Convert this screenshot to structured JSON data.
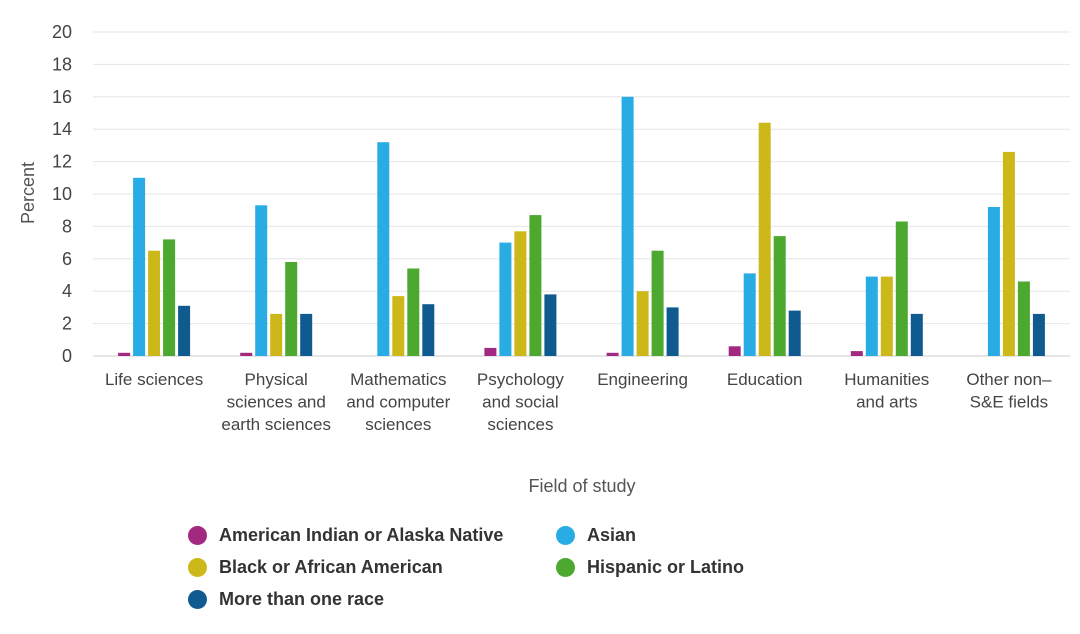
{
  "chart_data": {
    "type": "bar",
    "title": "",
    "xlabel": "Field of study",
    "ylabel": "Percent",
    "ylim": [
      0,
      20
    ],
    "yticks": [
      "0",
      "2",
      "4",
      "6",
      "8",
      "10",
      "12",
      "14",
      "16",
      "18",
      "20"
    ],
    "categories": [
      [
        "Life sciences"
      ],
      [
        "Physical",
        "sciences and",
        "earth sciences"
      ],
      [
        "Mathematics",
        "and computer",
        "sciences"
      ],
      [
        "Psychology",
        "and social",
        "sciences"
      ],
      [
        "Engineering"
      ],
      [
        "Education"
      ],
      [
        "Humanities",
        "and arts"
      ],
      [
        "Other non–",
        "S&E fields"
      ]
    ],
    "series": [
      {
        "name": "American Indian or Alaska Native",
        "color": "#a3287f",
        "values": [
          0.2,
          0.2,
          0.0,
          0.5,
          0.2,
          0.6,
          0.3,
          0.0
        ]
      },
      {
        "name": "Asian",
        "color": "#29ace3",
        "values": [
          11.0,
          9.3,
          13.2,
          7.0,
          16.0,
          5.1,
          4.9,
          9.2
        ]
      },
      {
        "name": "Black or African American",
        "color": "#cdb81a",
        "values": [
          6.5,
          2.6,
          3.7,
          7.7,
          4.0,
          14.4,
          4.9,
          12.6
        ]
      },
      {
        "name": "Hispanic or Latino",
        "color": "#4da830",
        "values": [
          7.2,
          5.8,
          5.4,
          8.7,
          6.5,
          7.4,
          8.3,
          4.6
        ]
      },
      {
        "name": "More than one race",
        "color": "#0f5a8e",
        "values": [
          3.1,
          2.6,
          3.2,
          3.8,
          3.0,
          2.8,
          2.6,
          2.6
        ]
      }
    ]
  }
}
